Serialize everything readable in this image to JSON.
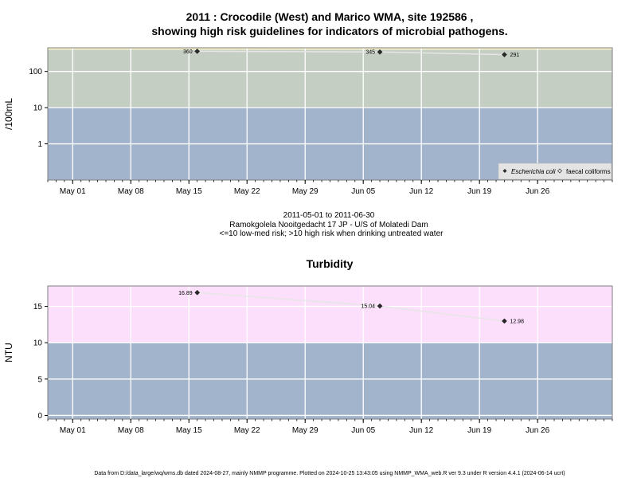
{
  "chart_data": [
    {
      "type": "line",
      "title_line1": "2011 : Crocodile (West) and Marico WMA, site 192586 ,",
      "title_line2": "showing high risk guidelines for indicators of microbial pathogens.",
      "ylabel": "/100mL",
      "y_scale": "log",
      "ylim": [
        0.1,
        450
      ],
      "y_ticks": [
        1,
        10,
        100
      ],
      "y_tick_labels": [
        "1",
        "10",
        "100"
      ],
      "x_ticks": [
        "2011-05-01",
        "2011-05-08",
        "2011-05-15",
        "2011-05-22",
        "2011-05-29",
        "2011-06-05",
        "2011-06-12",
        "2011-06-19",
        "2011-06-26"
      ],
      "x_tick_labels": [
        "May 01",
        "May 08",
        "May 15",
        "May 22",
        "May 29",
        "Jun 05",
        "Jun 12",
        "Jun 19",
        "Jun 26"
      ],
      "xlim": [
        "2011-04-28",
        "2011-07-05"
      ],
      "grid": true,
      "bands": [
        {
          "from": 0.1,
          "to": 10,
          "color": "#a2b3cc"
        },
        {
          "from": 10,
          "to": 400,
          "color": "#c5cec3"
        },
        {
          "from": 400,
          "to": 450,
          "color": "#f5f2c7"
        }
      ],
      "series": [
        {
          "name": "Escherichia coli",
          "marker": "filled-diamond",
          "x": [
            "2011-05-16",
            "2011-06-07",
            "2011-06-22"
          ],
          "values": [
            360,
            345,
            291
          ],
          "labels": [
            "360",
            "345",
            "291"
          ]
        }
      ],
      "legend": {
        "position": "bottom-right",
        "items": [
          "Escherichia coli",
          "faecal coliforms"
        ]
      },
      "subtitle_lines": [
        "2011-05-01 to 2011-06-30",
        "Ramokgolela Nooitgedacht 17 JP - U/S of Molatedi Dam",
        "<=10 low-med risk; >10 high risk when drinking untreated water"
      ]
    },
    {
      "type": "line",
      "title": "Turbidity",
      "ylabel": "NTU",
      "ylim": [
        -0.5,
        17.8
      ],
      "y_ticks": [
        0,
        5,
        10,
        15
      ],
      "y_tick_labels": [
        "0",
        "5",
        "10",
        "15"
      ],
      "x_ticks": [
        "2011-05-01",
        "2011-05-08",
        "2011-05-15",
        "2011-05-22",
        "2011-05-29",
        "2011-06-05",
        "2011-06-12",
        "2011-06-19",
        "2011-06-26"
      ],
      "x_tick_labels": [
        "May 01",
        "May 08",
        "May 15",
        "May 22",
        "May 29",
        "Jun 05",
        "Jun 12",
        "Jun 19",
        "Jun 26"
      ],
      "xlim": [
        "2011-04-28",
        "2011-07-05"
      ],
      "grid": true,
      "bands": [
        {
          "from": -0.5,
          "to": 10,
          "color": "#a2b3cc"
        },
        {
          "from": 10,
          "to": 17.8,
          "color": "#fbdffb"
        }
      ],
      "series": [
        {
          "marker": "filled-diamond",
          "x": [
            "2011-05-16",
            "2011-06-07",
            "2011-06-22"
          ],
          "values": [
            16.89,
            15.04,
            12.98
          ],
          "labels": [
            "16.89",
            "15.04",
            "12.98"
          ]
        }
      ]
    }
  ],
  "footer": "Data from D:/data_large/wq/wms.db dated 2024-08-27, mainly NMMP programme. Plotted on 2024-10-25 13:43:05 using NMMP_WMA_web.R ver 9.3 under R version 4.4.1 (2024-06-14 ucrt)"
}
